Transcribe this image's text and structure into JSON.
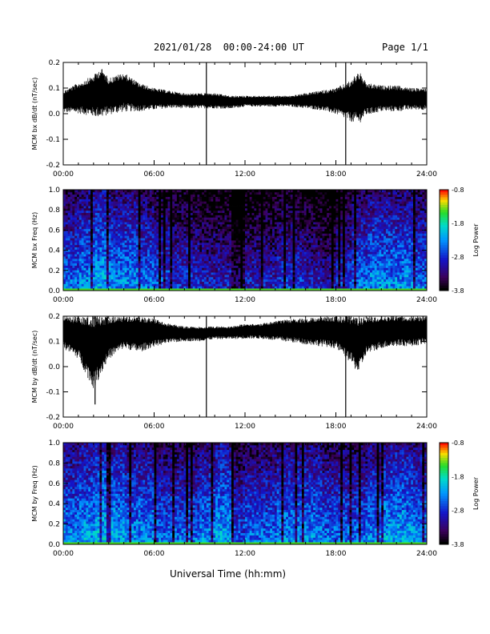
{
  "header": {
    "date_range": "2021/01/28  00:00-24:00 UT",
    "page": "Page 1/1"
  },
  "x_axis_title": "Universal Time (hh:mm)",
  "chart_data": [
    {
      "type": "line",
      "ylabel": "MCM bx dB/dt (nT/sec)",
      "xlim": [
        0,
        24
      ],
      "ylim": [
        -0.2,
        0.2
      ],
      "xticks": [
        "00:00",
        "06:00",
        "12:00",
        "18:00",
        "24:00"
      ],
      "yticks": [
        "-0.2",
        "-0.1",
        "0.0",
        "0.1",
        "0.2"
      ],
      "baseline": 0.04,
      "envelope_x": [
        0,
        1,
        2,
        2.5,
        3,
        4,
        5,
        6,
        7,
        8,
        9,
        10,
        11,
        12,
        13,
        14,
        15,
        16,
        17,
        18,
        19,
        19.5,
        20,
        21,
        22,
        23,
        24
      ],
      "envelope_high": [
        0.09,
        0.12,
        0.15,
        0.18,
        0.14,
        0.16,
        0.12,
        0.1,
        0.09,
        0.08,
        0.08,
        0.08,
        0.07,
        0.07,
        0.07,
        0.07,
        0.07,
        0.08,
        0.09,
        0.1,
        0.13,
        0.17,
        0.12,
        0.11,
        0.11,
        0.1,
        0.1
      ],
      "envelope_low": [
        -0.01,
        -0.02,
        -0.04,
        -0.05,
        -0.03,
        -0.02,
        -0.01,
        0.0,
        0.01,
        0.01,
        0.01,
        0.01,
        0.01,
        0.02,
        0.02,
        0.02,
        0.02,
        0.01,
        0.0,
        -0.02,
        -0.06,
        -0.08,
        -0.03,
        -0.01,
        -0.01,
        0.0,
        0.0
      ],
      "spikes": [
        {
          "t": 9.45,
          "low": -0.2,
          "high": 0.2
        },
        {
          "t": 18.65,
          "low": -0.2,
          "high": 0.2
        }
      ]
    },
    {
      "type": "heatmap",
      "ylabel": "MCM bx Freq (Hz)",
      "xlim": [
        0,
        24
      ],
      "ylim": [
        0.0,
        1.0
      ],
      "xticks": [
        "00:00",
        "06:00",
        "12:00",
        "18:00",
        "24:00"
      ],
      "yticks": [
        "0.0",
        "0.2",
        "0.4",
        "0.6",
        "0.8",
        "1.0"
      ],
      "colorbar": {
        "label": "Log Power",
        "ticks": [
          "-0.8",
          "-1.8",
          "-2.8",
          "-3.8"
        ],
        "range": [
          -3.8,
          -0.8
        ]
      },
      "power_profile": [
        0.45,
        0.5,
        0.55,
        0.5,
        0.5,
        0.45,
        0.4,
        0.35,
        0.35,
        0.3,
        0.3,
        0.15,
        0.3,
        0.3,
        0.35,
        0.35,
        0.3,
        0.25,
        0.35,
        0.45,
        0.5,
        0.5,
        0.5,
        0.45
      ]
    },
    {
      "type": "line",
      "ylabel": "MCM by dB/dt (nT/sec)",
      "xlim": [
        0,
        24
      ],
      "ylim": [
        -0.2,
        0.2
      ],
      "xticks": [
        "00:00",
        "06:00",
        "12:00",
        "18:00",
        "24:00"
      ],
      "yticks": [
        "-0.2",
        "-0.1",
        "0.0",
        "0.1",
        "0.2"
      ],
      "baseline": 0.13,
      "envelope_x": [
        0,
        1,
        2,
        3,
        4,
        5,
        6,
        7,
        8,
        9,
        10,
        11,
        12,
        13,
        14,
        15,
        16,
        17,
        18,
        19,
        19.5,
        20,
        21,
        22,
        23,
        24
      ],
      "envelope_high": [
        0.2,
        0.2,
        0.2,
        0.2,
        0.2,
        0.2,
        0.19,
        0.17,
        0.16,
        0.16,
        0.16,
        0.16,
        0.17,
        0.17,
        0.18,
        0.19,
        0.19,
        0.2,
        0.2,
        0.2,
        0.2,
        0.2,
        0.2,
        0.2,
        0.2,
        0.2
      ],
      "envelope_low": [
        0.05,
        0.0,
        -0.14,
        0.0,
        0.05,
        0.03,
        0.06,
        0.08,
        0.09,
        0.09,
        0.1,
        0.1,
        0.1,
        0.1,
        0.09,
        0.08,
        0.07,
        0.06,
        0.05,
        -0.02,
        -0.07,
        0.02,
        0.05,
        0.06,
        0.06,
        0.07
      ],
      "spikes": [
        {
          "t": 9.45,
          "low": -0.2,
          "high": 0.2
        },
        {
          "t": 18.65,
          "low": -0.2,
          "high": 0.2
        },
        {
          "t": 2.1,
          "low": -0.15,
          "high": 0.2
        }
      ]
    },
    {
      "type": "heatmap",
      "ylabel": "MCM by Freq (Hz)",
      "xlim": [
        0,
        24
      ],
      "ylim": [
        0.0,
        1.0
      ],
      "xticks": [
        "00:00",
        "06:00",
        "12:00",
        "18:00",
        "24:00"
      ],
      "yticks": [
        "0.0",
        "0.2",
        "0.4",
        "0.6",
        "0.8",
        "1.0"
      ],
      "colorbar": {
        "label": "Log Power",
        "ticks": [
          "-0.8",
          "-1.8",
          "-2.8",
          "-3.8"
        ],
        "range": [
          -3.8,
          -0.8
        ]
      },
      "power_profile": [
        0.5,
        0.55,
        0.6,
        0.55,
        0.5,
        0.5,
        0.45,
        0.45,
        0.45,
        0.5,
        0.55,
        0.4,
        0.45,
        0.45,
        0.5,
        0.5,
        0.5,
        0.45,
        0.45,
        0.45,
        0.5,
        0.55,
        0.55,
        0.5
      ]
    }
  ]
}
